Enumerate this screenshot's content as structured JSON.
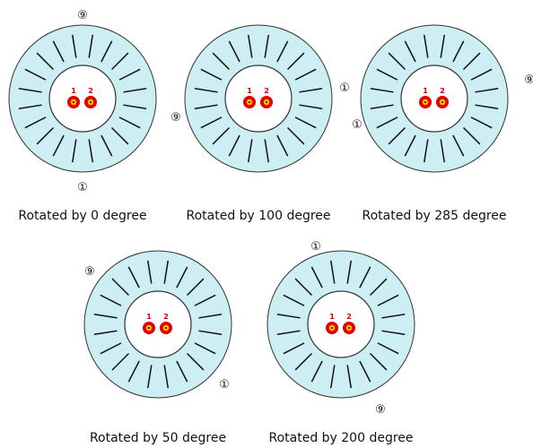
{
  "panels": [
    {
      "caption": "Rotated by 0 degree",
      "hole_labels": [
        "1",
        "2"
      ],
      "markers": [
        "①",
        "⑨"
      ]
    },
    {
      "caption": "Rotated by 100 degree",
      "hole_labels": [
        "1",
        "2"
      ],
      "markers": [
        "①",
        "⑨"
      ]
    },
    {
      "caption": "Rotated by 285 degree",
      "hole_labels": [
        "1",
        "2"
      ],
      "markers": [
        "①",
        "⑨"
      ]
    },
    {
      "caption": "Rotated by 50 degree",
      "hole_labels": [
        "1",
        "2"
      ],
      "markers": [
        "①",
        "⑨"
      ]
    },
    {
      "caption": "Rotated by 200 degree",
      "hole_labels": [
        "1",
        "2"
      ],
      "markers": [
        "①",
        "⑨"
      ]
    }
  ]
}
